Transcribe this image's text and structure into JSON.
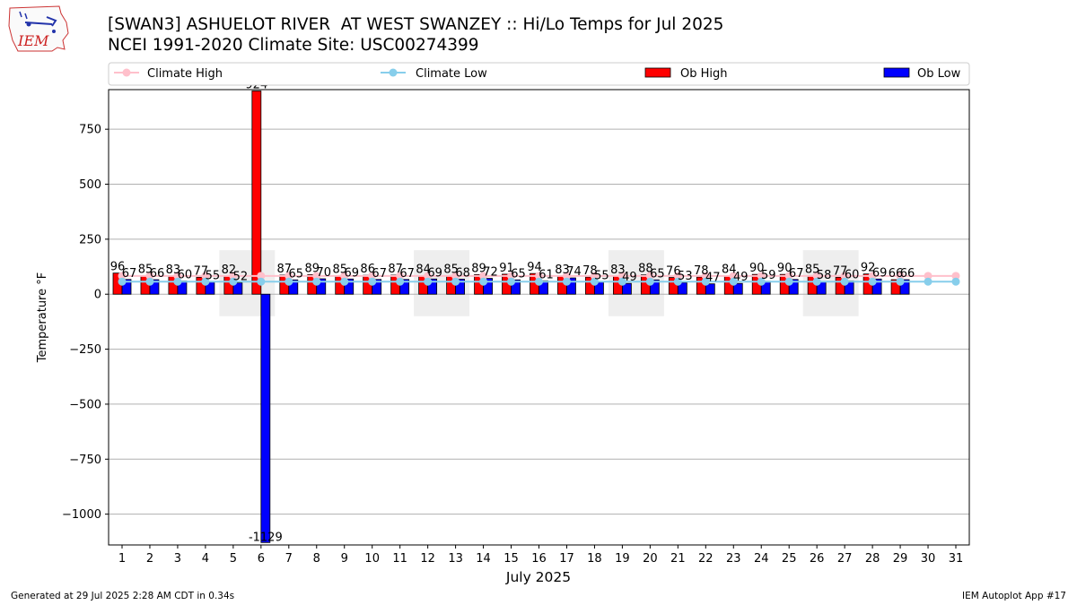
{
  "header": {
    "title_line1": "[SWAN3] ASHUELOT RIVER  AT WEST SWANZEY :: Hi/Lo Temps for Jul 2025",
    "title_line2": "NCEI 1991-2020 Climate Site: USC00274399",
    "logo_text": "IEM"
  },
  "footer": {
    "left": "Generated at 29 Jul 2025 2:28 AM CDT in 0.34s",
    "right": "IEM Autoplot App #17"
  },
  "colors": {
    "ob_high": "#ff0000",
    "ob_low": "#0000ff",
    "climate_high": "#ffc0cb",
    "climate_low": "#87ceeb",
    "weekend_shade": "#eeeeee",
    "grid": "#b0b0b0"
  },
  "chart_data": {
    "type": "bar",
    "xlabel": "July 2025",
    "ylabel": "Temperature °F",
    "ylim": [
      -1140,
      930
    ],
    "yticks": [
      750,
      500,
      250,
      0,
      -250,
      -500,
      -750,
      -1000
    ],
    "ytick_labels": [
      "750",
      "500",
      "250",
      "0",
      "−250",
      "−500",
      "−750",
      "−1000"
    ],
    "grid": "horizontal",
    "legend": {
      "placement": "top",
      "entries": [
        "Climate High",
        "Climate Low",
        "Ob High",
        "Ob Low"
      ]
    },
    "categories": [
      1,
      2,
      3,
      4,
      5,
      6,
      7,
      8,
      9,
      10,
      11,
      12,
      13,
      14,
      15,
      16,
      17,
      18,
      19,
      20,
      21,
      22,
      23,
      24,
      25,
      26,
      27,
      28,
      29,
      30,
      31
    ],
    "shaded_weekends": [
      [
        5,
        6
      ],
      [
        12,
        13
      ],
      [
        19,
        20
      ],
      [
        26,
        27
      ]
    ],
    "series": [
      {
        "name": "Ob High",
        "kind": "bar",
        "values": [
          96,
          85,
          83,
          77,
          82,
          924,
          87,
          89,
          85,
          86,
          87,
          84,
          85,
          89,
          91,
          94,
          83,
          78,
          83,
          88,
          76,
          78,
          84,
          90,
          90,
          85,
          77,
          92,
          66,
          null,
          null
        ]
      },
      {
        "name": "Ob Low",
        "kind": "bar",
        "values": [
          67,
          66,
          60,
          55,
          52,
          -1129,
          65,
          70,
          69,
          67,
          67,
          69,
          68,
          72,
          65,
          61,
          74,
          55,
          49,
          65,
          53,
          47,
          49,
          59,
          67,
          58,
          60,
          69,
          66,
          null,
          null
        ]
      },
      {
        "name": "Climate High",
        "kind": "line",
        "values": [
          83,
          83,
          83,
          83,
          83,
          83,
          83,
          83,
          83,
          83,
          83,
          83,
          83,
          83,
          83,
          83,
          83,
          83,
          83,
          83,
          83,
          83,
          83,
          83,
          83,
          83,
          83,
          83,
          83,
          83,
          83
        ]
      },
      {
        "name": "Climate Low",
        "kind": "line",
        "values": [
          57,
          57,
          57,
          57,
          57,
          57,
          57,
          57,
          57,
          57,
          57,
          57,
          57,
          57,
          57,
          57,
          57,
          57,
          57,
          57,
          57,
          57,
          57,
          57,
          57,
          57,
          57,
          57,
          57,
          57,
          57
        ]
      }
    ]
  }
}
